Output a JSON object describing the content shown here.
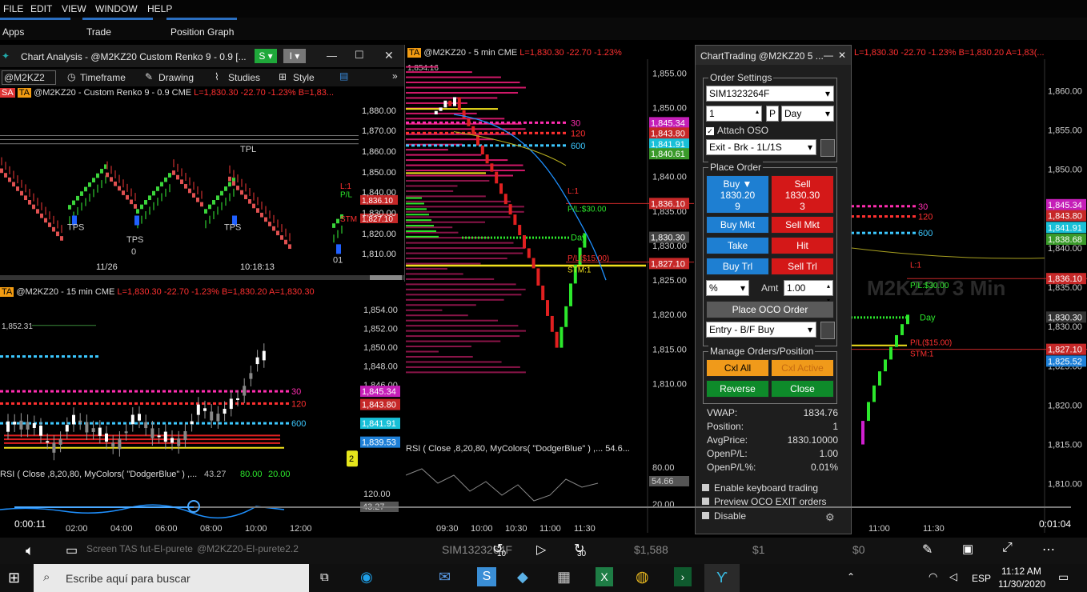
{
  "menu": [
    "FILE",
    "EDIT",
    "VIEW",
    "WINDOW",
    "HELP"
  ],
  "apps_tabs": [
    "Apps",
    "Trade",
    "Position Graph"
  ],
  "chart_analysis": {
    "window_title": "Chart Analysis - @M2KZ20 Custom Renko 9 - 0.9 [...",
    "toolbar_symbol": "@M2KZ2",
    "toolbar_items": [
      "Timeframe",
      "Drawing",
      "Studies",
      "Style"
    ],
    "chart_title": "@M2KZ20 - Custom Renko 9 - 0.9  CME",
    "chart_stats": "L=1,830.30  -22.70  -1.23%  B=1,83...",
    "prices": [
      "1,880.00",
      "1,870.00",
      "1,860.00",
      "1,850.00",
      "1,840.00",
      "1,830.00",
      "1,820.00",
      "1,810.00"
    ],
    "times": [
      "11/26",
      "10:18:13"
    ],
    "tags": [
      "L:1",
      "P/L",
      "1,836.10",
      "1,827.10",
      "STM"
    ],
    "labels": [
      "TPS",
      "TPS",
      "TPL",
      "TPS",
      "01",
      "0"
    ]
  },
  "chart15": {
    "title": "@M2KZ20 - 15 min  CME",
    "stats": "L=1,830.30  -22.70  -1.23%  B=1,830.20  A=1,830.30",
    "hi_label": "1,852.31",
    "prices": [
      "1,854.00",
      "1,852.00",
      "1,850.00",
      "1,848.00",
      "1,846.00"
    ],
    "levels": [
      "30",
      "120",
      "600"
    ],
    "tags": [
      "1,845.34",
      "1,843.80",
      "1,841.91",
      "1,839.53"
    ],
    "rsi_label": "RSI ( Close ,8,20,80, MyColors( \"DodgerBlue\" ) ,...",
    "rsi_vals": [
      "43.27",
      "80.00",
      "20.00"
    ],
    "rsi_axis": [
      "120.00",
      "43.27"
    ],
    "times": [
      "02:00",
      "04:00",
      "06:00",
      "08:00",
      "10:00",
      "12:00"
    ],
    "badge": "2"
  },
  "chart5": {
    "title": "@M2KZ20 - 5 min  CME",
    "stats": "L=1,830.30  -22.70  -1.23%",
    "hi_label": "1,854.16",
    "prices": [
      "1,855.00",
      "1,850.00",
      "1,845.00",
      "1,840.00",
      "1,835.00",
      "1,830.00",
      "1,825.00",
      "1,820.00",
      "1,815.00",
      "1,810.00"
    ],
    "levels": [
      "30",
      "120",
      "600"
    ],
    "tags": [
      "1,845.34",
      "1,843.80",
      "1,841.91",
      "1,840.61",
      "1,836.10",
      "1,830.30",
      "1,827.10"
    ],
    "annot": [
      "L:1",
      "P/L:$30.00",
      "Day",
      "P/L($15.00)",
      "STM:1"
    ],
    "rsi_label": "RSI ( Close ,8,20,80, MyColors( \"DodgerBlue\" ) ,...  54.6...",
    "rsi_axis": [
      "80.00",
      "54.66",
      "20.00"
    ],
    "times": [
      "09:30",
      "10:00",
      "10:30",
      "11:00",
      "11:30"
    ]
  },
  "chart3": {
    "stats": "L=1,830.30  -22.70  -1.23%  B=1,830.20  A=1,83(...",
    "watermark": "M2KZ20 3 Min",
    "prices": [
      "1,860.00",
      "1,855.00",
      "1,850.00",
      "1,845.00",
      "1,840.00",
      "1,835.00",
      "1,830.00",
      "1,825.00",
      "1,820.00",
      "1,815.00",
      "1,810.00"
    ],
    "levels": [
      "30",
      "120",
      "600"
    ],
    "tags": [
      "1,845.34",
      "1,843.80",
      "1,841.91",
      "1,838.68",
      "1,836.10",
      "1,830.30",
      "1,827.10",
      "1,825.52"
    ],
    "annot": [
      "L:1",
      "P/L:$30.00",
      "Day",
      "P/L($15.00)",
      "STM:1"
    ],
    "times": [
      "11:00",
      "11:30"
    ]
  },
  "chart_trading": {
    "title": "ChartTrading @M2KZ20 5 ...",
    "order_settings": "Order Settings",
    "account": "SIM1323264F",
    "qty": "1",
    "p": "P",
    "duration": "Day",
    "attach_oso": "Attach OSO",
    "exit_strategy": "Exit - Brk - 1L/1S",
    "place_order": "Place Order",
    "buy": {
      "label": "Buy ▼",
      "price": "1830.20",
      "size": "9"
    },
    "sell": {
      "label": "Sell",
      "price": "1830.30",
      "size": "3"
    },
    "buy_mkt": "Buy Mkt",
    "sell_mkt": "Sell Mkt",
    "take": "Take",
    "hit": "Hit",
    "buy_trl": "Buy Trl",
    "sell_trl": "Sell Trl",
    "pct": "%",
    "amt_label": "Amt",
    "amt": "1.00",
    "place_oco": "Place OCO Order",
    "entry_strategy": "Entry - B/F Buy",
    "manage": "Manage Orders/Position",
    "cxl_all": "Cxl All",
    "cxl_active": "Cxl Active",
    "reverse": "Reverse",
    "close": "Close",
    "info": [
      {
        "k": "VWAP:",
        "v": "1834.76"
      },
      {
        "k": "Position:",
        "v": "1"
      },
      {
        "k": "AvgPrice:",
        "v": "1830.10000"
      },
      {
        "k": "OpenP/L:",
        "v": "1.00"
      },
      {
        "k": "OpenP/L%:",
        "v": "0.01%"
      }
    ],
    "opts": [
      "Enable keyboard trading",
      "Preview OCO EXIT orders",
      "Disable"
    ]
  },
  "video": {
    "elapsed": "0:00:11",
    "total": "0:01:04",
    "progress": 0.17,
    "tabs": [
      "Screen TAS fut-El-purete",
      "@M2KZ20-El-purete2.2"
    ],
    "status": [
      "SIM1323264F",
      "$1,588",
      "$1",
      "$0"
    ],
    "skip_back": "10",
    "skip_fwd": "30"
  },
  "taskbar": {
    "search": "Escribe aquí para buscar",
    "lang": "ESP",
    "time": "11:12 AM",
    "date": "11/30/2020"
  },
  "colors": {
    "up": "#2ce82c",
    "down": "#e02020",
    "renko_up": "#3ad43a",
    "renko_dn": "#e05050",
    "accent": "#2b6fc1"
  }
}
